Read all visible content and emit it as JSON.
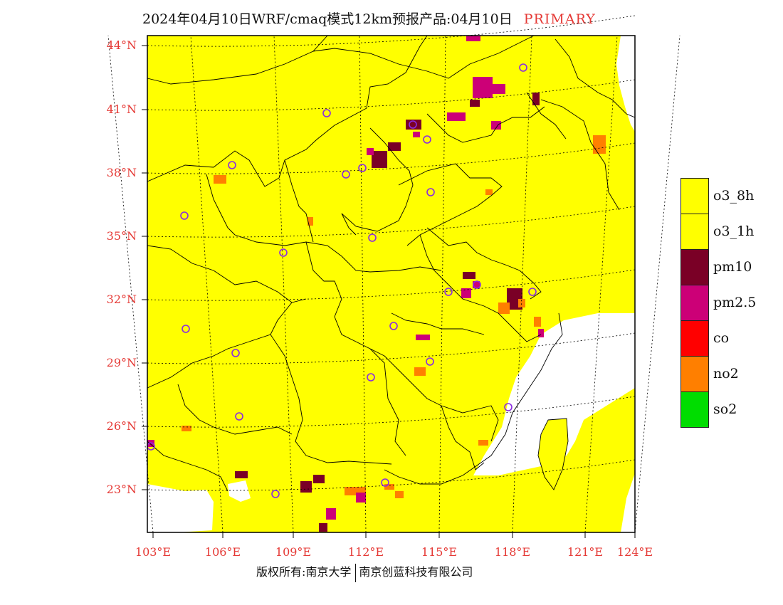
{
  "title": {
    "main": "2024年04月10日WRF/cmaq模式12km预报产品:04月10日",
    "tag": "PRIMARY"
  },
  "map": {
    "lat_labels": [
      "44°N",
      "41°N",
      "38°N",
      "35°N",
      "32°N",
      "29°N",
      "26°N",
      "23°N"
    ],
    "lon_labels": [
      "103°E",
      "106°E",
      "109°E",
      "112°E",
      "115°E",
      "118°E",
      "121°E",
      "124°E"
    ],
    "colors": {
      "land_fill": "#ffff00",
      "sea_fill": "#ffffff",
      "boundary": "#000000",
      "station_marker": "#8a2be2"
    }
  },
  "legend": {
    "items": [
      {
        "label": "o3_8h",
        "color": "#ffff00"
      },
      {
        "label": "o3_1h",
        "color": "#ffff00"
      },
      {
        "label": "pm10",
        "color": "#7a0026"
      },
      {
        "label": "pm2.5",
        "color": "#cc0077"
      },
      {
        "label": "co",
        "color": "#ff0000"
      },
      {
        "label": "no2",
        "color": "#ff7f00"
      },
      {
        "label": "so2",
        "color": "#00dd00"
      }
    ]
  },
  "footer": {
    "left": "版权所有:南京大学",
    "right": "南京创蓝科技有限公司"
  }
}
